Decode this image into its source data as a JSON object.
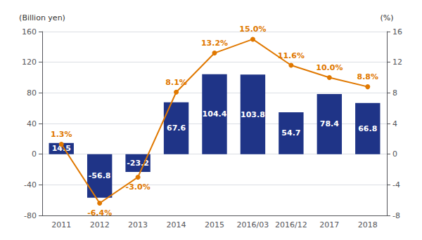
{
  "chart_data": {
    "type": "bar",
    "categories": [
      "2011",
      "2012",
      "2013",
      "2014",
      "2015",
      "2016/03",
      "2016/12",
      "2017",
      "2018"
    ],
    "series": [
      {
        "type": "bar",
        "color": "#1f3487",
        "values": [
          14.5,
          -56.8,
          -23.2,
          67.6,
          104.4,
          103.8,
          54.7,
          78.4,
          66.8
        ]
      },
      {
        "type": "line",
        "axis": "y2",
        "color": "#e07800",
        "marker": "circle",
        "values": [
          1.3,
          -6.4,
          -3.0,
          8.1,
          13.2,
          15.0,
          11.6,
          10.0,
          8.8
        ],
        "value_labels": [
          "1.3%",
          "-6.4%",
          "-3.0%",
          "8.1%",
          "13.2%",
          "15.0%",
          "11.6%",
          "10.0%",
          "8.8%"
        ]
      }
    ],
    "ylabel": "(Billion yen)",
    "y2label": "(%)",
    "ylim": [
      -80,
      160
    ],
    "yticks": [
      -80,
      -40,
      0,
      40,
      80,
      120,
      160
    ],
    "y2lim": [
      -8,
      16
    ],
    "y2ticks": [
      -8,
      -4,
      0,
      4,
      8,
      12,
      16
    ],
    "grid": true,
    "data_labels": true
  }
}
